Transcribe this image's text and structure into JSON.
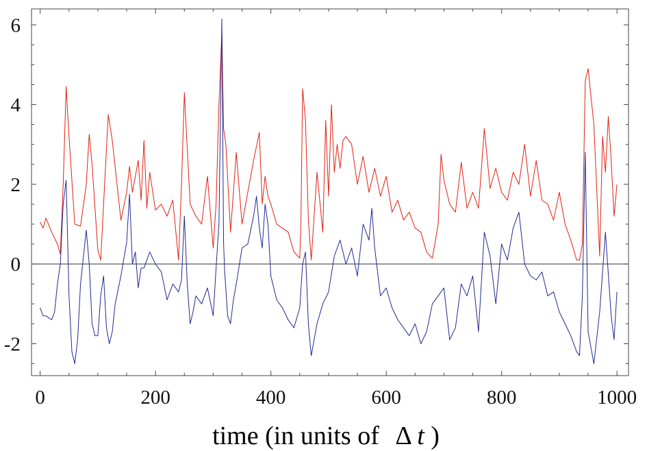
{
  "chart_data": {
    "type": "line",
    "title": "",
    "xlabel_prefix": "time (in units of",
    "xlabel_delta": "Δ",
    "xlabel_var": "t",
    "xlabel_suffix": ")",
    "ylabel": "",
    "xlim": [
      -15,
      1020
    ],
    "ylim": [
      -2.8,
      6.4
    ],
    "xticks": [
      0,
      200,
      400,
      600,
      800,
      1000
    ],
    "xtick_labels": [
      "0",
      "200",
      "400",
      "600",
      "800",
      "1000"
    ],
    "yticks": [
      -2,
      0,
      2,
      4,
      6
    ],
    "ytick_labels": [
      "-2",
      "0",
      "2",
      "4",
      "6"
    ],
    "grid": false,
    "zero_line": true,
    "series": [
      {
        "color": "#e02010",
        "x": [
          0,
          5,
          10,
          20,
          30,
          35,
          40,
          45,
          50,
          60,
          70,
          80,
          85,
          90,
          100,
          105,
          110,
          118,
          125,
          140,
          150,
          155,
          160,
          170,
          175,
          180,
          185,
          190,
          200,
          210,
          220,
          230,
          240,
          245,
          250,
          260,
          270,
          280,
          290,
          300,
          305,
          310,
          315,
          318,
          322,
          330,
          340,
          350,
          360,
          370,
          380,
          385,
          390,
          395,
          400,
          410,
          420,
          430,
          440,
          450,
          452,
          455,
          460,
          465,
          470,
          480,
          490,
          495,
          500,
          505,
          510,
          515,
          520,
          525,
          530,
          540,
          550,
          560,
          570,
          580,
          590,
          600,
          610,
          620,
          630,
          640,
          650,
          660,
          670,
          680,
          690,
          695,
          700,
          710,
          720,
          730,
          740,
          750,
          760,
          765,
          770,
          780,
          790,
          800,
          810,
          820,
          830,
          840,
          850,
          860,
          870,
          880,
          890,
          900,
          910,
          920,
          930,
          935,
          940,
          945,
          950,
          960,
          970,
          975,
          980,
          985,
          990,
          995,
          1000
        ],
        "y": [
          1.05,
          0.9,
          1.15,
          0.8,
          0.5,
          0.25,
          2.0,
          4.45,
          3.2,
          1.0,
          0.95,
          2.0,
          3.25,
          2.5,
          0.35,
          0.1,
          1.5,
          3.75,
          3.1,
          1.1,
          1.8,
          2.45,
          1.8,
          2.6,
          1.6,
          3.1,
          1.4,
          2.3,
          1.35,
          1.5,
          1.2,
          1.6,
          0.1,
          2.0,
          4.3,
          1.5,
          1.2,
          1.0,
          2.2,
          0.4,
          1.5,
          4.0,
          5.8,
          3.4,
          3.0,
          0.8,
          2.8,
          1.0,
          1.8,
          2.6,
          3.3,
          1.5,
          2.2,
          1.7,
          1.5,
          1.0,
          0.9,
          0.8,
          0.3,
          0.15,
          1.0,
          4.4,
          3.6,
          1.1,
          0.1,
          2.3,
          0.8,
          3.6,
          1.7,
          4.0,
          2.3,
          3.0,
          2.4,
          3.1,
          3.2,
          3.0,
          2.0,
          2.7,
          1.8,
          2.4,
          1.7,
          2.2,
          1.3,
          1.6,
          1.1,
          1.3,
          0.9,
          0.8,
          0.3,
          0.15,
          1.0,
          2.75,
          2.1,
          1.5,
          1.3,
          2.55,
          1.4,
          1.8,
          1.4,
          2.4,
          3.4,
          1.9,
          2.4,
          1.8,
          1.6,
          2.3,
          2.0,
          3.0,
          1.7,
          2.6,
          1.6,
          1.5,
          1.1,
          1.8,
          1.0,
          0.6,
          0.1,
          0.1,
          0.5,
          4.6,
          4.9,
          3.5,
          0.2,
          3.2,
          2.3,
          3.7,
          2.6,
          1.2,
          2.0
        ]
      },
      {
        "color": "#202890",
        "x": [
          0,
          5,
          10,
          20,
          25,
          30,
          35,
          40,
          45,
          50,
          55,
          60,
          65,
          70,
          80,
          85,
          90,
          95,
          100,
          105,
          110,
          115,
          120,
          125,
          130,
          140,
          150,
          155,
          160,
          165,
          170,
          175,
          180,
          190,
          200,
          210,
          220,
          230,
          240,
          245,
          250,
          255,
          260,
          265,
          270,
          280,
          290,
          300,
          305,
          310,
          315,
          318,
          320,
          325,
          330,
          335,
          340,
          350,
          360,
          370,
          375,
          380,
          385,
          390,
          395,
          400,
          410,
          420,
          430,
          440,
          450,
          455,
          460,
          465,
          470,
          480,
          490,
          500,
          510,
          520,
          530,
          540,
          550,
          560,
          570,
          575,
          580,
          590,
          600,
          610,
          620,
          630,
          640,
          650,
          660,
          670,
          680,
          690,
          700,
          710,
          720,
          730,
          740,
          750,
          760,
          770,
          780,
          790,
          800,
          810,
          820,
          830,
          840,
          850,
          860,
          870,
          880,
          890,
          900,
          910,
          920,
          930,
          935,
          940,
          945,
          950,
          955,
          960,
          970,
          980,
          990,
          995,
          1000
        ],
        "y": [
          -1.1,
          -1.3,
          -1.3,
          -1.4,
          -1.2,
          -0.5,
          0.0,
          1.5,
          2.1,
          -0.8,
          -2.2,
          -2.5,
          -1.9,
          -0.5,
          0.85,
          0.0,
          -1.5,
          -1.8,
          -1.8,
          -0.8,
          -0.3,
          -1.6,
          -2.0,
          -1.7,
          -1.0,
          -0.3,
          0.55,
          1.75,
          0.0,
          0.3,
          -0.6,
          -0.1,
          -0.1,
          0.3,
          0.0,
          -0.2,
          -0.9,
          -0.5,
          -0.7,
          -0.4,
          1.2,
          -0.5,
          -1.5,
          -1.2,
          -0.8,
          -1.0,
          -0.6,
          -1.3,
          -0.1,
          1.0,
          6.15,
          0.5,
          -0.2,
          -1.3,
          -1.5,
          -0.9,
          -0.5,
          0.4,
          0.5,
          1.2,
          1.7,
          0.9,
          0.4,
          1.5,
          1.0,
          -0.3,
          -0.9,
          -1.1,
          -1.4,
          -1.6,
          -1.1,
          0.0,
          0.3,
          -1.5,
          -2.3,
          -1.5,
          -1.0,
          -0.7,
          0.2,
          0.6,
          0.0,
          0.4,
          -0.3,
          1.0,
          0.6,
          1.4,
          0.4,
          -0.8,
          -0.6,
          -1.1,
          -1.4,
          -1.6,
          -1.8,
          -1.5,
          -2.0,
          -1.7,
          -1.0,
          -0.8,
          -0.6,
          -1.9,
          -1.6,
          -0.5,
          -0.8,
          -0.3,
          -1.7,
          0.8,
          0.2,
          -1.0,
          0.5,
          0.1,
          0.9,
          1.3,
          0.0,
          -0.3,
          -0.4,
          -0.2,
          -0.8,
          -0.7,
          -1.2,
          -1.5,
          -1.8,
          -2.2,
          -2.3,
          -0.8,
          2.8,
          -1.7,
          -2.1,
          -2.5,
          -1.2,
          0.8,
          -1.3,
          -1.9,
          -0.7
        ]
      }
    ]
  }
}
